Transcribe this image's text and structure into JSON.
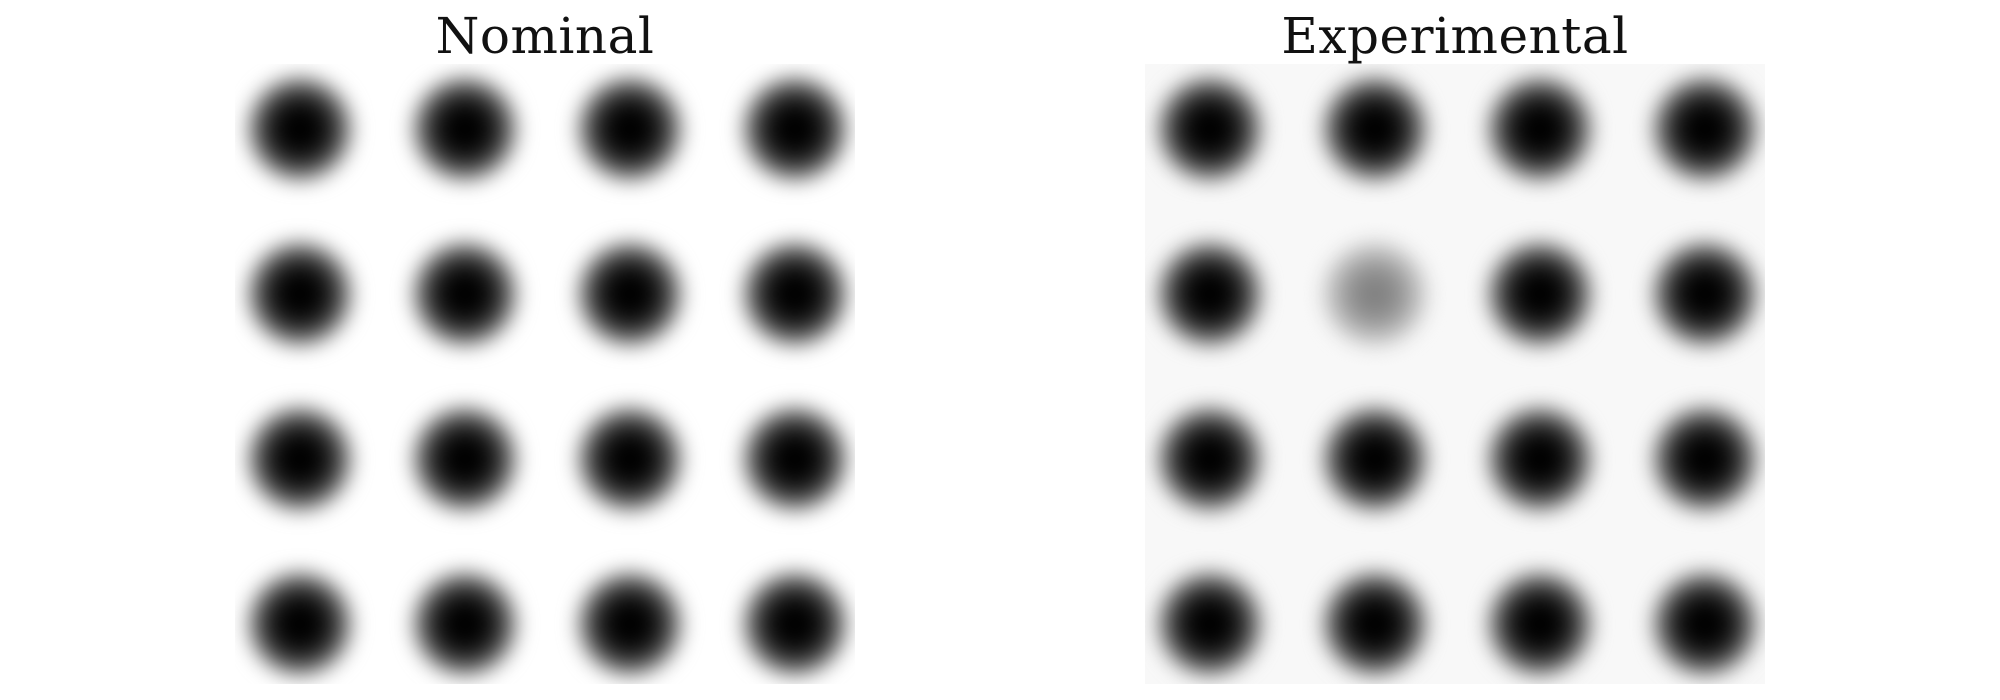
{
  "panels": [
    {
      "title": "Nominal",
      "rows": 4,
      "cols": 4,
      "spot_intensity": [
        [
          1,
          1,
          1,
          1
        ],
        [
          1,
          1,
          1,
          1
        ],
        [
          1,
          1,
          1,
          1
        ],
        [
          1,
          1,
          1,
          1
        ]
      ]
    },
    {
      "title": "Experimental",
      "rows": 4,
      "cols": 4,
      "spot_intensity": [
        [
          1,
          1,
          1,
          1
        ],
        [
          1,
          0.45,
          1,
          1
        ],
        [
          1,
          1,
          1,
          1
        ],
        [
          1,
          1,
          1,
          1
        ]
      ]
    }
  ]
}
